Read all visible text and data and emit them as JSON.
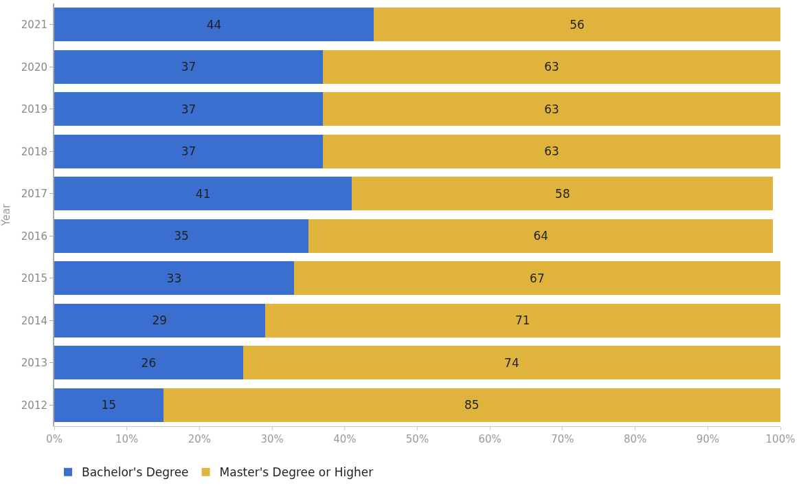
{
  "chart_data": {
    "type": "bar",
    "orientation": "horizontal",
    "stacked": true,
    "ylabel": "Year",
    "categories": [
      "2021",
      "2020",
      "2019",
      "2018",
      "2017",
      "2016",
      "2015",
      "2014",
      "2013",
      "2012"
    ],
    "series": [
      {
        "name": "Bachelor's Degree",
        "color": "#3a6fd0",
        "values": [
          44,
          37,
          37,
          37,
          41,
          35,
          33,
          29,
          26,
          15
        ]
      },
      {
        "name": "Master's Degree or Higher",
        "color": "#e0b43c",
        "values": [
          56,
          63,
          63,
          63,
          58,
          64,
          67,
          71,
          74,
          85
        ]
      }
    ],
    "xlim": [
      0,
      100
    ],
    "xticks": [
      {
        "value": 0,
        "label": "0%"
      },
      {
        "value": 10,
        "label": "10%"
      },
      {
        "value": 20,
        "label": "20%"
      },
      {
        "value": 30,
        "label": "30%"
      },
      {
        "value": 40,
        "label": "40%"
      },
      {
        "value": 50,
        "label": "50%"
      },
      {
        "value": 60,
        "label": "60%"
      },
      {
        "value": 70,
        "label": "70%"
      },
      {
        "value": 80,
        "label": "80%"
      },
      {
        "value": 90,
        "label": "90%"
      },
      {
        "value": 100,
        "label": "100%"
      }
    ],
    "data_labels": true,
    "legend": "bottom"
  }
}
